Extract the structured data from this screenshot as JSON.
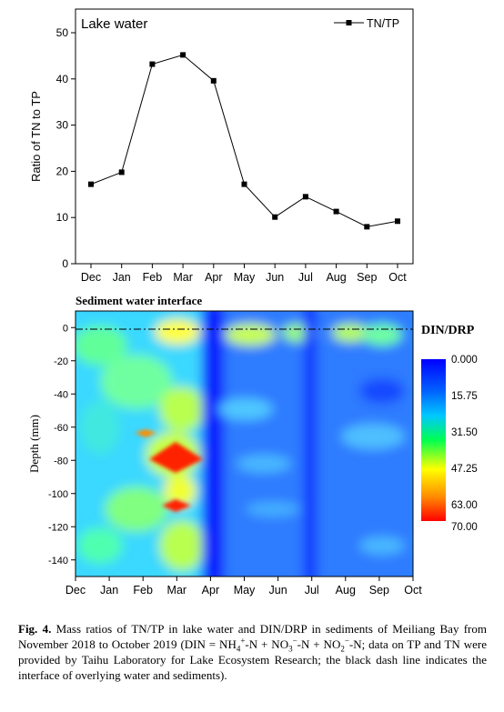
{
  "chart_data": [
    {
      "type": "line",
      "title": "Lake water",
      "xlabel": "",
      "ylabel": "Ratio of TN to TP",
      "categories": [
        "Dec",
        "Jan",
        "Feb",
        "Mar",
        "Apr",
        "May",
        "Jun",
        "Jul",
        "Aug",
        "Sep",
        "Oct"
      ],
      "series": [
        {
          "name": "TN/TP",
          "values": [
            17.2,
            19.8,
            43.2,
            45.2,
            39.6,
            17.2,
            10.1,
            14.5,
            11.3,
            8.0,
            9.2
          ]
        }
      ],
      "ylim": [
        0,
        50
      ],
      "yticks": [
        0,
        10,
        20,
        30,
        40,
        50
      ],
      "legend": "top-right",
      "grid": false
    },
    {
      "type": "heatmap",
      "title": "Sediment water interface",
      "xlabel": "",
      "ylabel": "Depth (mm)",
      "x_categories": [
        "Dec",
        "Jan",
        "Feb",
        "Mar",
        "Apr",
        "May",
        "Jun",
        "Jul",
        "Aug",
        "Sep",
        "Oct"
      ],
      "yticks": [
        0,
        -20,
        -40,
        -60,
        -80,
        -100,
        -120,
        -140
      ],
      "ylim": [
        -150,
        10
      ],
      "colorbar_title": "DIN/DRP",
      "colorbar_ticks": [
        "0.000",
        "15.75",
        "31.50",
        "47.25",
        "63.00",
        "70.00"
      ],
      "colorbar_range": [
        0,
        70
      ],
      "colors": [
        "#0000ff",
        "#00c8ff",
        "#00ff40",
        "#ffff00",
        "#ff8c00",
        "#ff0000"
      ],
      "annotation": "black dash-dot line at 0 mm marks the overlying water / sediment interface"
    }
  ],
  "caption": {
    "label": "Fig. 4.",
    "text_1": " Mass ratios of TN/TP in lake water and DIN/DRP in sediments of Meiliang Bay from November 2018 to October 2019 (DIN = NH",
    "sub_4": "4",
    "sup_plus": "+",
    "text_2": "-N + NO",
    "sub_3a": "3",
    "sup_minus_a": "−",
    "text_3": "-N + NO",
    "sub_2": "2",
    "sup_minus_b": "−",
    "text_4": "-N; data on TP and TN were provided by Taihu Laboratory for Lake Ecosystem Research; the black dash line indicates the interface of overlying water and sediments)."
  }
}
